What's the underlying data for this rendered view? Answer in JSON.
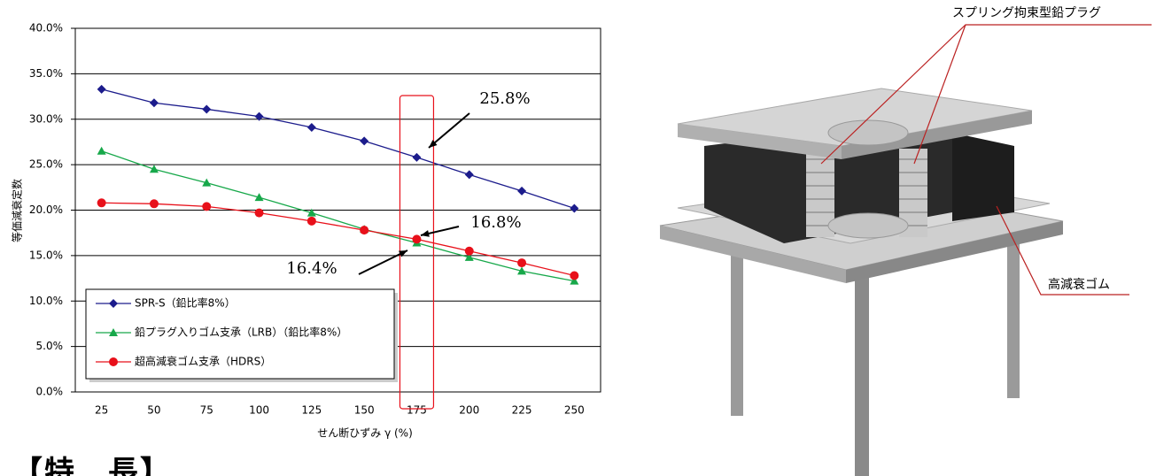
{
  "chart_data": {
    "type": "line",
    "categories": [
      "25",
      "50",
      "75",
      "100",
      "125",
      "150",
      "175",
      "200",
      "225",
      "250"
    ],
    "series": [
      {
        "name": "SPR-S（鉛比率8%）",
        "color": "#1c1c8c",
        "marker": "diamond",
        "values": [
          33.3,
          31.8,
          31.1,
          30.3,
          29.1,
          27.6,
          25.8,
          23.9,
          22.1,
          20.2
        ]
      },
      {
        "name": "鉛プラグ入りゴム支承（LRB）（鉛比率8%）",
        "color": "#17a84a",
        "marker": "triangle",
        "values": [
          26.5,
          24.5,
          23.0,
          21.4,
          19.7,
          17.9,
          16.4,
          14.8,
          13.3,
          12.2
        ]
      },
      {
        "name": "超高減衰ゴム支承（HDRS）",
        "color": "#e8101a",
        "marker": "circle",
        "values": [
          20.8,
          20.7,
          20.4,
          19.7,
          18.8,
          17.8,
          16.8,
          15.5,
          14.2,
          12.8
        ]
      }
    ],
    "ylim": [
      0,
      40
    ],
    "yticks": [
      {
        "value": 0,
        "label": "0.0%"
      },
      {
        "value": 5,
        "label": "5.0%"
      },
      {
        "value": 10,
        "label": "10.0%"
      },
      {
        "value": 15,
        "label": "15.0%"
      },
      {
        "value": 20,
        "label": "20.0%"
      },
      {
        "value": 25,
        "label": "25.0%"
      },
      {
        "value": 30,
        "label": "30.0%"
      },
      {
        "value": 35,
        "label": "35.0%"
      },
      {
        "value": 40,
        "label": "40.0%"
      }
    ],
    "y_label": "等価減衰定数",
    "x_label": "せん断ひずみ γ (%)",
    "grid": true,
    "annotations": [
      {
        "text": "25.8%",
        "color": "#1c2a6c"
      },
      {
        "text": "16.8%",
        "color": "#e8101a"
      },
      {
        "text": "16.4%",
        "color": "#17a84a"
      }
    ]
  },
  "diagram": {
    "labels": [
      "スプリング拘束型鉛プラグ",
      "高減衰ゴム"
    ]
  },
  "heading": "【特　長】"
}
